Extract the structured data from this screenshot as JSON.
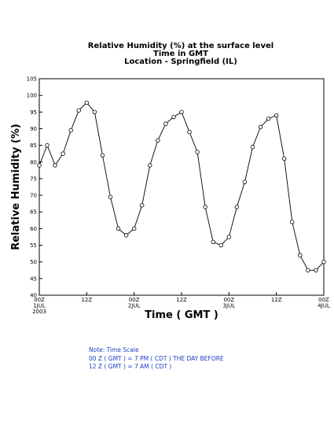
{
  "chart_data": {
    "type": "line",
    "title_lines": [
      "Relative Humidity (%) at the surface level",
      "Time in GMT",
      "Location - Springfield (IL)"
    ],
    "xlabel": "Time ( GMT )",
    "ylabel": "Relative Humidity (%)",
    "ylim": [
      40,
      105
    ],
    "yticks": [
      40,
      45,
      50,
      55,
      60,
      65,
      70,
      75,
      80,
      85,
      90,
      95,
      100,
      105
    ],
    "xlim": [
      0,
      72
    ],
    "xticks": [
      {
        "x": 0,
        "lines": [
          "00Z",
          "1JUL",
          "2003"
        ]
      },
      {
        "x": 12,
        "lines": [
          "12Z"
        ]
      },
      {
        "x": 24,
        "lines": [
          "00Z",
          "2JUL"
        ]
      },
      {
        "x": 36,
        "lines": [
          "12Z"
        ]
      },
      {
        "x": 48,
        "lines": [
          "00Z",
          "3JUL"
        ]
      },
      {
        "x": 60,
        "lines": [
          "12Z"
        ]
      },
      {
        "x": 72,
        "lines": [
          "00Z",
          "4JUL"
        ]
      }
    ],
    "grid": false,
    "series": [
      {
        "x": [
          0,
          2,
          4,
          6,
          8,
          10,
          12,
          14,
          16,
          18,
          20,
          22,
          24,
          26,
          28,
          30,
          32,
          34,
          36,
          38,
          40,
          42,
          44,
          46,
          48,
          50,
          52,
          54,
          56,
          58,
          60,
          62,
          64,
          66,
          68,
          70,
          72
        ],
        "values": [
          79,
          85,
          79,
          82.5,
          89.5,
          95.5,
          97.8,
          95,
          82,
          69.5,
          60,
          58,
          60,
          67,
          79,
          86.5,
          91.5,
          93.5,
          95,
          89,
          83,
          66.5,
          56,
          55,
          57.5,
          66.5,
          74,
          84.5,
          90.5,
          93,
          94,
          81,
          62,
          52,
          47.5,
          47.5,
          50
        ]
      }
    ]
  },
  "note": {
    "lines": [
      "Note: Time Scale",
      "00 Z ( GMT ) = 7 PM ( CDT ) THE DAY BEFORE",
      "12 Z ( GMT ) = 7 AM ( CDT )"
    ]
  }
}
